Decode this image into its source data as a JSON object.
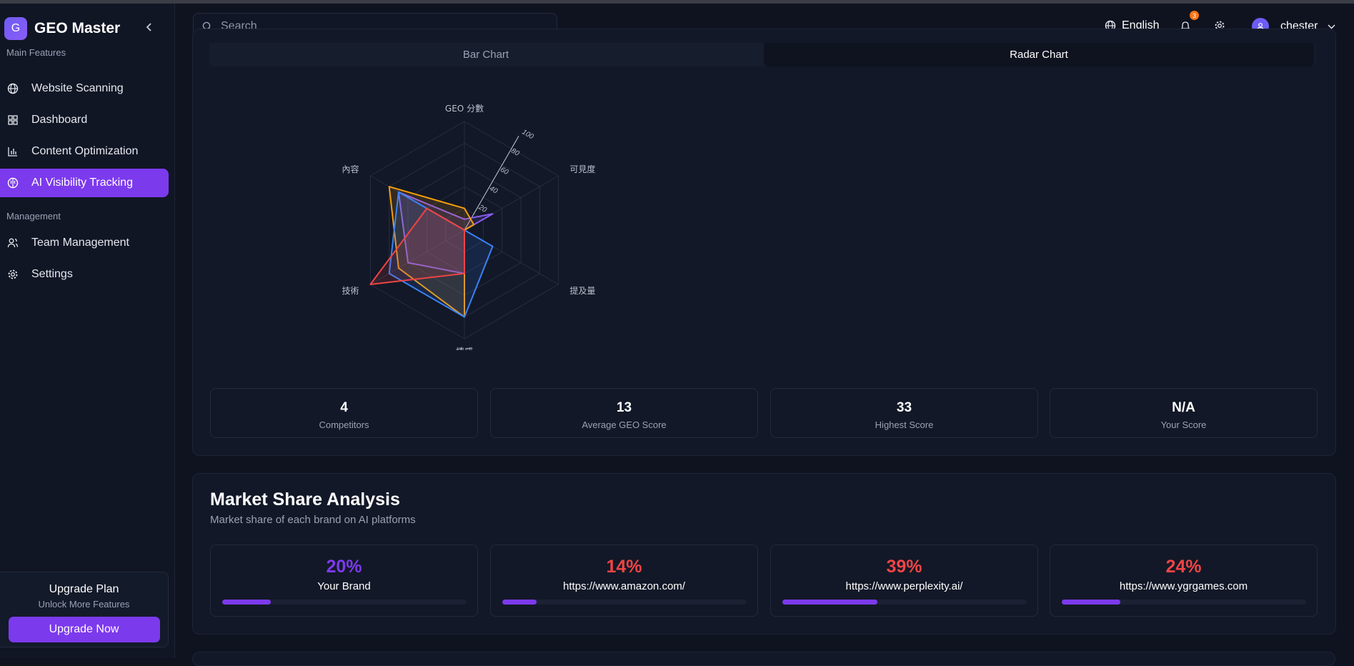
{
  "app": {
    "logo_letter": "G",
    "name": "GEO Master"
  },
  "sidebar": {
    "section_main": "Main Features",
    "section_management": "Management",
    "items": [
      {
        "label": "Website Scanning",
        "icon": "globe-icon"
      },
      {
        "label": "Dashboard",
        "icon": "grid-icon"
      },
      {
        "label": "Content Optimization",
        "icon": "bar-chart-icon"
      },
      {
        "label": "AI Visibility Tracking",
        "icon": "brain-icon",
        "active": true
      },
      {
        "label": "Team Management",
        "icon": "users-icon"
      },
      {
        "label": "Settings",
        "icon": "gear-icon"
      }
    ],
    "upgrade": {
      "title": "Upgrade Plan",
      "subtitle": "Unlock More Features",
      "button": "Upgrade Now"
    }
  },
  "header": {
    "search_placeholder": "Search",
    "language": "English",
    "notification_count": "3",
    "username": "chester"
  },
  "tabs": {
    "bar": "Bar Chart",
    "radar": "Radar Chart",
    "active": "radar"
  },
  "chart_data": {
    "type": "radar",
    "axes": [
      "GEO 分數",
      "可見度",
      "提及量",
      "情感",
      "技術",
      "內容"
    ],
    "ticks": [
      "20",
      "40",
      "60",
      "80",
      "100"
    ],
    "range": [
      0,
      100
    ],
    "series": [
      {
        "color": "#8b5cf6",
        "values": [
          10,
          30,
          0,
          40,
          60,
          70
        ]
      },
      {
        "color": "#f59e0b",
        "values": [
          20,
          10,
          0,
          80,
          70,
          80
        ]
      },
      {
        "color": "#3b82f6",
        "values": [
          0,
          0,
          30,
          80,
          80,
          70
        ]
      },
      {
        "color": "#ef4444",
        "values": [
          0,
          0,
          0,
          40,
          100,
          40
        ]
      }
    ]
  },
  "stats": [
    {
      "value": "4",
      "label": "Competitors"
    },
    {
      "value": "13",
      "label": "Average GEO Score"
    },
    {
      "value": "33",
      "label": "Highest Score"
    },
    {
      "value": "N/A",
      "label": "Your Score"
    }
  ],
  "market_share": {
    "title": "Market Share Analysis",
    "subtitle": "Market share of each brand on AI platforms",
    "items": [
      {
        "percent": "20%",
        "name": "Your Brand",
        "value": 20,
        "color": "#7c3aed"
      },
      {
        "percent": "14%",
        "name": "https://www.amazon.com/",
        "value": 14,
        "color": "#ef4444"
      },
      {
        "percent": "39%",
        "name": "https://www.perplexity.ai/",
        "value": 39,
        "color": "#ef4444"
      },
      {
        "percent": "24%",
        "name": "https://www.ygrgames.com",
        "value": 24,
        "color": "#ef4444"
      }
    ]
  }
}
